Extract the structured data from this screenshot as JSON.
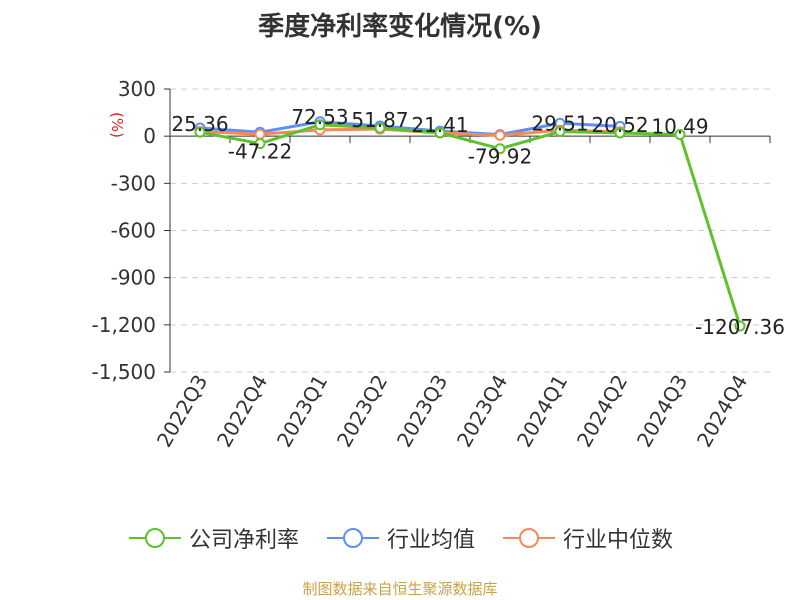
{
  "chart_data": {
    "type": "line",
    "title": "季度净利率变化情况(%)",
    "ylabel": "(%)",
    "xlabel": "",
    "categories": [
      "2022Q3",
      "2022Q4",
      "2023Q1",
      "2023Q2",
      "2023Q3",
      "2023Q4",
      "2024Q1",
      "2024Q2",
      "2024Q3",
      "2024Q4"
    ],
    "ylim": [
      -1500,
      300
    ],
    "yticks": [
      300,
      0,
      -300,
      -600,
      -900,
      -1200,
      -1500
    ],
    "ytick_labels": [
      "300",
      "0",
      "-300",
      "-600",
      "-900",
      "-1,200",
      "-1,500"
    ],
    "grid": true,
    "legend_position": "bottom",
    "series": [
      {
        "name": "公司净利率",
        "color": "#5fc22d",
        "values": [
          25.36,
          -47.22,
          72.53,
          51.87,
          21.41,
          -79.92,
          29.51,
          20.52,
          10.49,
          -1207.36
        ],
        "labels": [
          "25.36",
          "-47.22",
          "72.53",
          "51.87",
          "21.41",
          "-79.92",
          "29.51",
          "20.52",
          "10.49",
          "-1207.36"
        ]
      },
      {
        "name": "行业均值",
        "color": "#5b8ff9",
        "values": [
          52,
          25,
          92,
          65,
          32,
          10,
          82,
          62,
          null,
          null
        ]
      },
      {
        "name": "行业中位数",
        "color": "#f5895b",
        "values": [
          30,
          12,
          40,
          45,
          20,
          5,
          38,
          28,
          null,
          null
        ]
      }
    ]
  },
  "source": "制图数据来自恒生聚源数据库"
}
